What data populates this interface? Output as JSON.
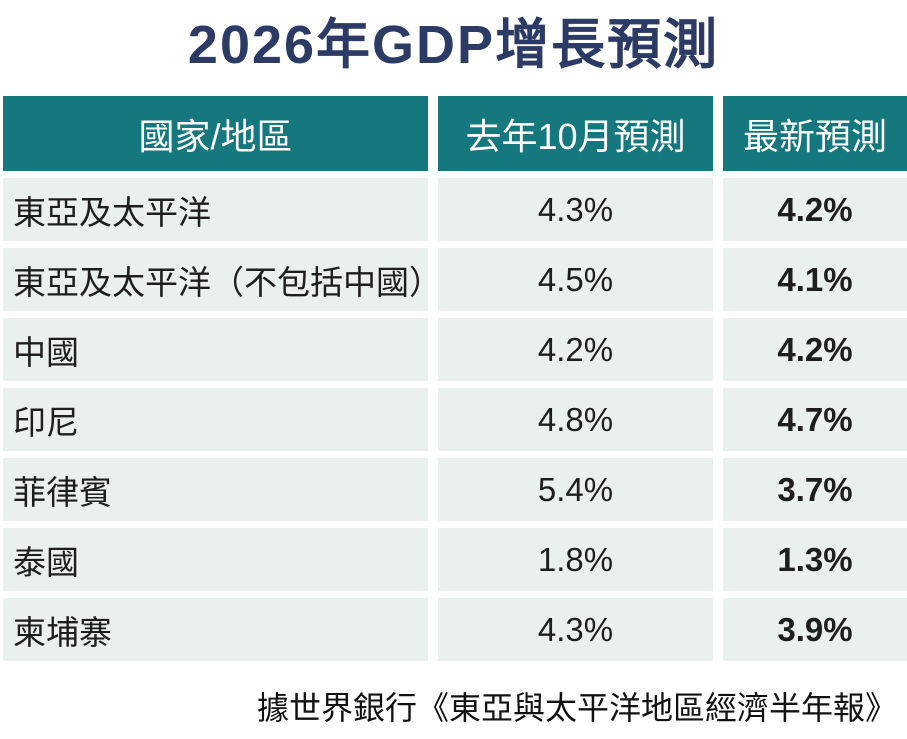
{
  "title": "2026年GDP增長預測",
  "table": {
    "headers": [
      "國家/地區",
      "去年10月預測",
      "最新預測"
    ],
    "rows": [
      [
        "東亞及太平洋",
        "4.3%",
        "4.2%"
      ],
      [
        "東亞及太平洋（不包括中國）",
        "4.5%",
        "4.1%"
      ],
      [
        "中國",
        "4.2%",
        "4.2%"
      ],
      [
        "印尼",
        "4.8%",
        "4.7%"
      ],
      [
        "菲律賓",
        "5.4%",
        "3.7%"
      ],
      [
        "泰國",
        "1.8%",
        "1.3%"
      ],
      [
        "柬埔寨",
        "4.3%",
        "3.9%"
      ]
    ]
  },
  "source_note": "據世界銀行《東亞與太平洋地區經濟半年報》",
  "colors": {
    "header_teal": "#14787E",
    "row_background": "#E9F0EE",
    "title_navy": "#2C3A66"
  },
  "chart_data": {
    "type": "table",
    "title": "2026年GDP增長預測",
    "columns": [
      "國家/地區",
      "去年10月預測",
      "最新預測"
    ],
    "categories": [
      "東亞及太平洋",
      "東亞及太平洋（不包括中國）",
      "中國",
      "印尼",
      "菲律賓",
      "泰國",
      "柬埔寨"
    ],
    "series": [
      {
        "name": "去年10月預測",
        "values": [
          4.3,
          4.5,
          4.2,
          4.8,
          5.4,
          1.8,
          4.3
        ],
        "unit": "%"
      },
      {
        "name": "最新預測",
        "values": [
          4.2,
          4.1,
          4.2,
          4.7,
          3.7,
          1.3,
          3.9
        ],
        "unit": "%"
      }
    ],
    "source": "據世界銀行《東亞與太平洋地區經濟半年報》"
  }
}
